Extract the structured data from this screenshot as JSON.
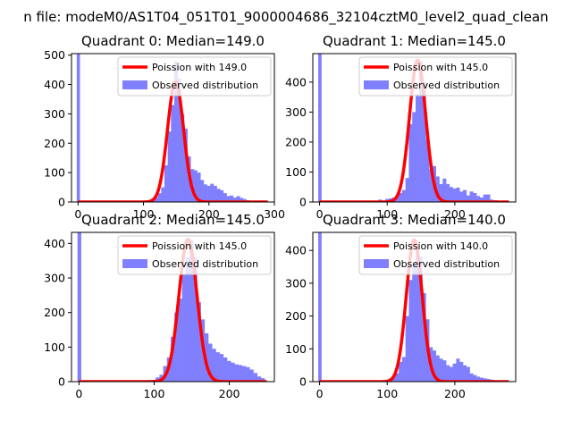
{
  "figure": {
    "suptitle": "n file: modeM0/AS1T04_051T01_9000004686_32104cztM0_level2_quad_clean"
  },
  "colors": {
    "hist_fill": "#8080ff",
    "poisson_line": "#ff0000",
    "axis": "#000000"
  },
  "chart_data": [
    {
      "type": "bar",
      "title": "Quadrant 0: Median=149.0",
      "median": 149.0,
      "xlim": [
        -10,
        300
      ],
      "ylim": [
        0,
        505
      ],
      "xticks": [
        0,
        100,
        200,
        300
      ],
      "yticks": [
        0,
        100,
        200,
        300,
        400,
        500
      ],
      "legend": {
        "placement": "upper right",
        "entries": [
          "Poission with 149.0",
          "Observed distribution"
        ]
      },
      "series": [
        {
          "name": "Poission with 149.0",
          "kind": "line",
          "peak": 410
        },
        {
          "name": "Observed distribution",
          "kind": "histogram",
          "spike": {
            "x": 0,
            "height": 505
          },
          "bins": [
            [
              102,
              3
            ],
            [
              107,
              5
            ],
            [
              112,
              8
            ],
            [
              117,
              15
            ],
            [
              122,
              30
            ],
            [
              127,
              50
            ],
            [
              132,
              125
            ],
            [
              137,
              240
            ],
            [
              142,
              330
            ],
            [
              147,
              478
            ],
            [
              152,
              420
            ],
            [
              157,
              300
            ],
            [
              162,
              250
            ],
            [
              167,
              155
            ],
            [
              172,
              112
            ],
            [
              177,
              108
            ],
            [
              182,
              100
            ],
            [
              187,
              75
            ],
            [
              192,
              60
            ],
            [
              197,
              55
            ],
            [
              202,
              62
            ],
            [
              207,
              55
            ],
            [
              212,
              45
            ],
            [
              217,
              40
            ],
            [
              222,
              30
            ],
            [
              227,
              20
            ],
            [
              232,
              22
            ],
            [
              237,
              15
            ],
            [
              242,
              20
            ],
            [
              247,
              14
            ],
            [
              252,
              10
            ],
            [
              257,
              6
            ],
            [
              262,
              4
            ],
            [
              267,
              3
            ],
            [
              272,
              2
            ],
            [
              277,
              2
            ]
          ]
        }
      ]
    },
    {
      "type": "bar",
      "title": "Quadrant 1: Median=145.0",
      "median": 145.0,
      "xlim": [
        -10,
        290
      ],
      "ylim": [
        0,
        495
      ],
      "xticks": [
        0,
        100,
        200
      ],
      "yticks": [
        0,
        100,
        200,
        300,
        400
      ],
      "legend": {
        "placement": "upper right",
        "entries": [
          "Poission with 145.0",
          "Observed distribution"
        ]
      },
      "series": [
        {
          "name": "Poission with 145.0",
          "kind": "line",
          "peak": 473
        },
        {
          "name": "Observed distribution",
          "kind": "histogram",
          "spike": {
            "x": 0,
            "height": 495
          },
          "bins": [
            [
              57,
              3
            ],
            [
              62,
              2
            ],
            [
              67,
              3
            ],
            [
              72,
              2
            ],
            [
              77,
              2
            ],
            [
              82,
              3
            ],
            [
              87,
              8
            ],
            [
              92,
              5
            ],
            [
              97,
              10
            ],
            [
              102,
              12
            ],
            [
              107,
              15
            ],
            [
              112,
              22
            ],
            [
              117,
              30
            ],
            [
              122,
              40
            ],
            [
              127,
              80
            ],
            [
              132,
              260
            ],
            [
              137,
              300
            ],
            [
              142,
              360
            ],
            [
              147,
              470
            ],
            [
              152,
              400
            ],
            [
              157,
              210
            ],
            [
              162,
              110
            ],
            [
              167,
              120
            ],
            [
              172,
              85
            ],
            [
              177,
              60
            ],
            [
              182,
              78
            ],
            [
              187,
              60
            ],
            [
              192,
              50
            ],
            [
              197,
              45
            ],
            [
              202,
              48
            ],
            [
              207,
              35
            ],
            [
              212,
              40
            ],
            [
              217,
              22
            ],
            [
              222,
              35
            ],
            [
              227,
              30
            ],
            [
              232,
              20
            ],
            [
              237,
              15
            ],
            [
              242,
              25
            ],
            [
              247,
              25
            ],
            [
              252,
              8
            ],
            [
              257,
              6
            ],
            [
              262,
              4
            ],
            [
              267,
              3
            ],
            [
              272,
              2
            ]
          ]
        }
      ]
    },
    {
      "type": "bar",
      "title": "Quadrant 2: Median=145.0",
      "median": 145.0,
      "xlim": [
        -10,
        260
      ],
      "ylim": [
        0,
        432
      ],
      "xticks": [
        0,
        100,
        200
      ],
      "yticks": [
        0,
        100,
        200,
        300,
        400
      ],
      "legend": {
        "placement": "upper right",
        "entries": [
          "Poission with 145.0",
          "Observed distribution"
        ]
      },
      "series": [
        {
          "name": "Poission with 145.0",
          "kind": "line",
          "peak": 412
        },
        {
          "name": "Observed distribution",
          "kind": "histogram",
          "spike": {
            "x": 0,
            "height": 432
          },
          "bins": [
            [
              82,
              2
            ],
            [
              87,
              4
            ],
            [
              92,
              5
            ],
            [
              97,
              5
            ],
            [
              102,
              12
            ],
            [
              107,
              20
            ],
            [
              112,
              45
            ],
            [
              117,
              70
            ],
            [
              122,
              130
            ],
            [
              127,
              200
            ],
            [
              132,
              240
            ],
            [
              137,
              310
            ],
            [
              142,
              360
            ],
            [
              147,
              410
            ],
            [
              152,
              360
            ],
            [
              157,
              230
            ],
            [
              162,
              180
            ],
            [
              167,
              140
            ],
            [
              172,
              110
            ],
            [
              177,
              95
            ],
            [
              182,
              85
            ],
            [
              187,
              80
            ],
            [
              192,
              70
            ],
            [
              197,
              60
            ],
            [
              202,
              55
            ],
            [
              207,
              50
            ],
            [
              212,
              48
            ],
            [
              217,
              45
            ],
            [
              222,
              42
            ],
            [
              227,
              35
            ],
            [
              232,
              25
            ],
            [
              237,
              15
            ],
            [
              242,
              10
            ]
          ]
        }
      ]
    },
    {
      "type": "bar",
      "title": "Quadrant 3: Median=140.0",
      "median": 140.0,
      "xlim": [
        -10,
        290
      ],
      "ylim": [
        0,
        455
      ],
      "xticks": [
        0,
        100,
        200
      ],
      "yticks": [
        0,
        100,
        200,
        300,
        400
      ],
      "legend": {
        "placement": "upper right",
        "entries": [
          "Poission with 140.0",
          "Observed distribution"
        ]
      },
      "series": [
        {
          "name": "Poission with 140.0",
          "kind": "line",
          "peak": 432
        },
        {
          "name": "Observed distribution",
          "kind": "histogram",
          "spike": {
            "x": 0,
            "height": 455
          },
          "bins": [
            [
              82,
              2
            ],
            [
              87,
              3
            ],
            [
              92,
              4
            ],
            [
              97,
              5
            ],
            [
              102,
              10
            ],
            [
              107,
              15
            ],
            [
              112,
              25
            ],
            [
              117,
              60
            ],
            [
              122,
              75
            ],
            [
              127,
              200
            ],
            [
              132,
              310
            ],
            [
              137,
              360
            ],
            [
              142,
              410
            ],
            [
              147,
              380
            ],
            [
              152,
              270
            ],
            [
              157,
              190
            ],
            [
              162,
              105
            ],
            [
              167,
              95
            ],
            [
              172,
              80
            ],
            [
              177,
              70
            ],
            [
              182,
              65
            ],
            [
              187,
              50
            ],
            [
              192,
              45
            ],
            [
              197,
              55
            ],
            [
              202,
              70
            ],
            [
              207,
              60
            ],
            [
              212,
              50
            ],
            [
              217,
              45
            ],
            [
              222,
              25
            ],
            [
              227,
              20
            ],
            [
              232,
              15
            ],
            [
              237,
              12
            ],
            [
              242,
              10
            ],
            [
              247,
              8
            ],
            [
              252,
              6
            ],
            [
              257,
              4
            ],
            [
              262,
              3
            ],
            [
              267,
              2
            ]
          ]
        }
      ]
    }
  ]
}
